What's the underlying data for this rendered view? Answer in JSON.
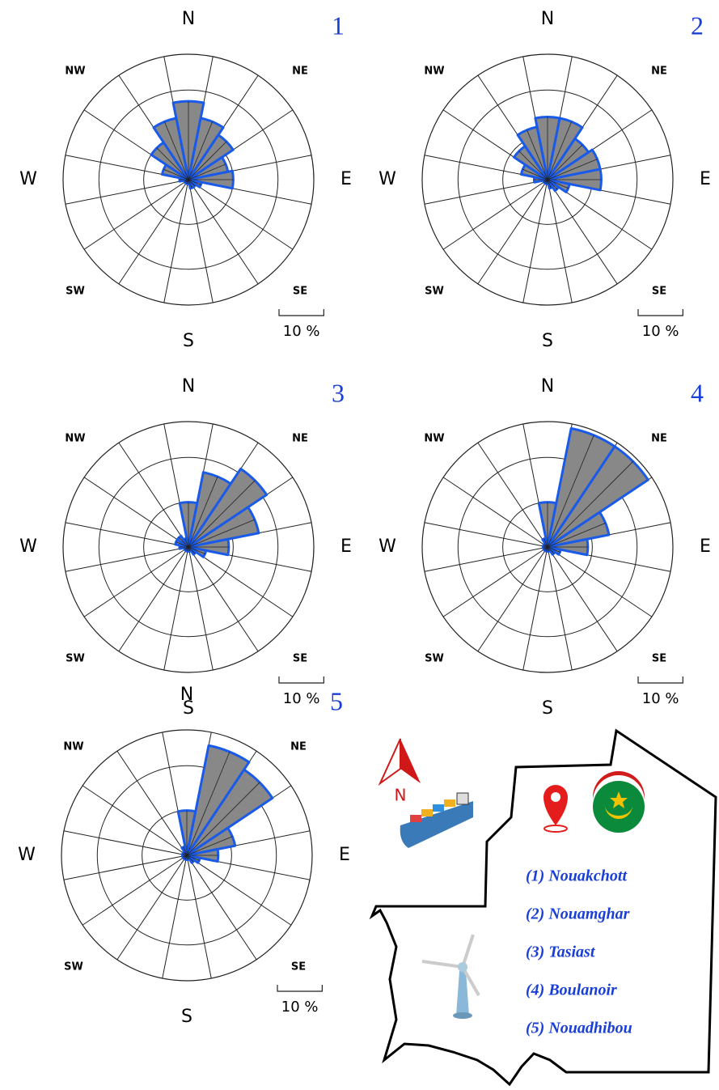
{
  "chart_data": [
    {
      "type": "rose",
      "panel_label": "1",
      "categories": [
        "N",
        null,
        "NE",
        null,
        "E",
        null,
        "SE",
        null,
        "S",
        null,
        "SW",
        null,
        "W",
        null,
        "NW",
        null
      ],
      "values": [
        17.5,
        14,
        12,
        9,
        10,
        3,
        2,
        2,
        1,
        1,
        1,
        1,
        2,
        6,
        10,
        14
      ],
      "color": "#888888",
      "edge_color": "#1a5ae8",
      "rlim": [
        0,
        28
      ],
      "rticks": [
        10,
        20
      ],
      "scale_bar": {
        "value": 10,
        "label": "10 %"
      }
    },
    {
      "type": "rose",
      "panel_label": "2",
      "categories": [
        "N",
        null,
        "NE",
        null,
        "E",
        null,
        "SE",
        null,
        "S",
        null,
        "SW",
        null,
        "W",
        null,
        "NW",
        null
      ],
      "values": [
        14,
        14,
        11,
        12,
        12,
        5,
        3,
        2,
        1,
        1,
        1,
        1,
        3,
        6,
        9,
        12
      ],
      "color": "#888888",
      "edge_color": "#1a5ae8",
      "rlim": [
        0,
        28
      ],
      "rticks": [
        10,
        20
      ],
      "scale_bar": {
        "value": 10,
        "label": "10 %"
      }
    },
    {
      "type": "rose",
      "panel_label": "3",
      "categories": [
        "N",
        null,
        "NE",
        null,
        "E",
        null,
        "SE",
        null,
        "S",
        null,
        "SW",
        null,
        "W",
        null,
        "NW",
        null
      ],
      "values": [
        10,
        17,
        21,
        16,
        9,
        4,
        2,
        1,
        1,
        1,
        1,
        1,
        2,
        3,
        3,
        2
      ],
      "color": "#888888",
      "edge_color": "#1a5ae8",
      "rlim": [
        0,
        28
      ],
      "rticks": [
        10,
        20
      ],
      "scale_bar": {
        "value": 10,
        "label": "10 %"
      }
    },
    {
      "type": "rose",
      "panel_label": "4",
      "categories": [
        "N",
        null,
        "NE",
        null,
        "E",
        null,
        "SE",
        null,
        "S",
        null,
        "SW",
        null,
        "W",
        null,
        "NW",
        null
      ],
      "values": [
        10,
        27,
        27,
        14,
        9,
        3,
        2,
        1,
        1,
        1,
        1,
        1,
        1,
        1,
        1,
        2
      ],
      "color": "#888888",
      "edge_color": "#1a5ae8",
      "rlim": [
        0,
        28
      ],
      "rticks": [
        10,
        20
      ],
      "scale_bar": {
        "value": 10,
        "label": "10 %"
      }
    },
    {
      "type": "rose",
      "panel_label": "5",
      "categories": [
        "N",
        null,
        "NE",
        null,
        "E",
        null,
        "SE",
        null,
        "S",
        null,
        "SW",
        null,
        "W",
        null,
        "NW",
        null
      ],
      "values": [
        10,
        25,
        23,
        11,
        7,
        3,
        2,
        1,
        1,
        1,
        1,
        1,
        1,
        1,
        1,
        2
      ],
      "color": "#888888",
      "edge_color": "#1a5ae8",
      "rlim": [
        0,
        28
      ],
      "rticks": [
        10,
        20
      ],
      "scale_bar": {
        "value": 10,
        "label": "10 %"
      }
    }
  ],
  "map": {
    "north_label": "N",
    "legend": [
      "(1) Nouakchott",
      "(2) Nouamghar",
      "(3) Tasiast",
      "(4) Boulanoir",
      "(5) Nouadhibou"
    ]
  }
}
